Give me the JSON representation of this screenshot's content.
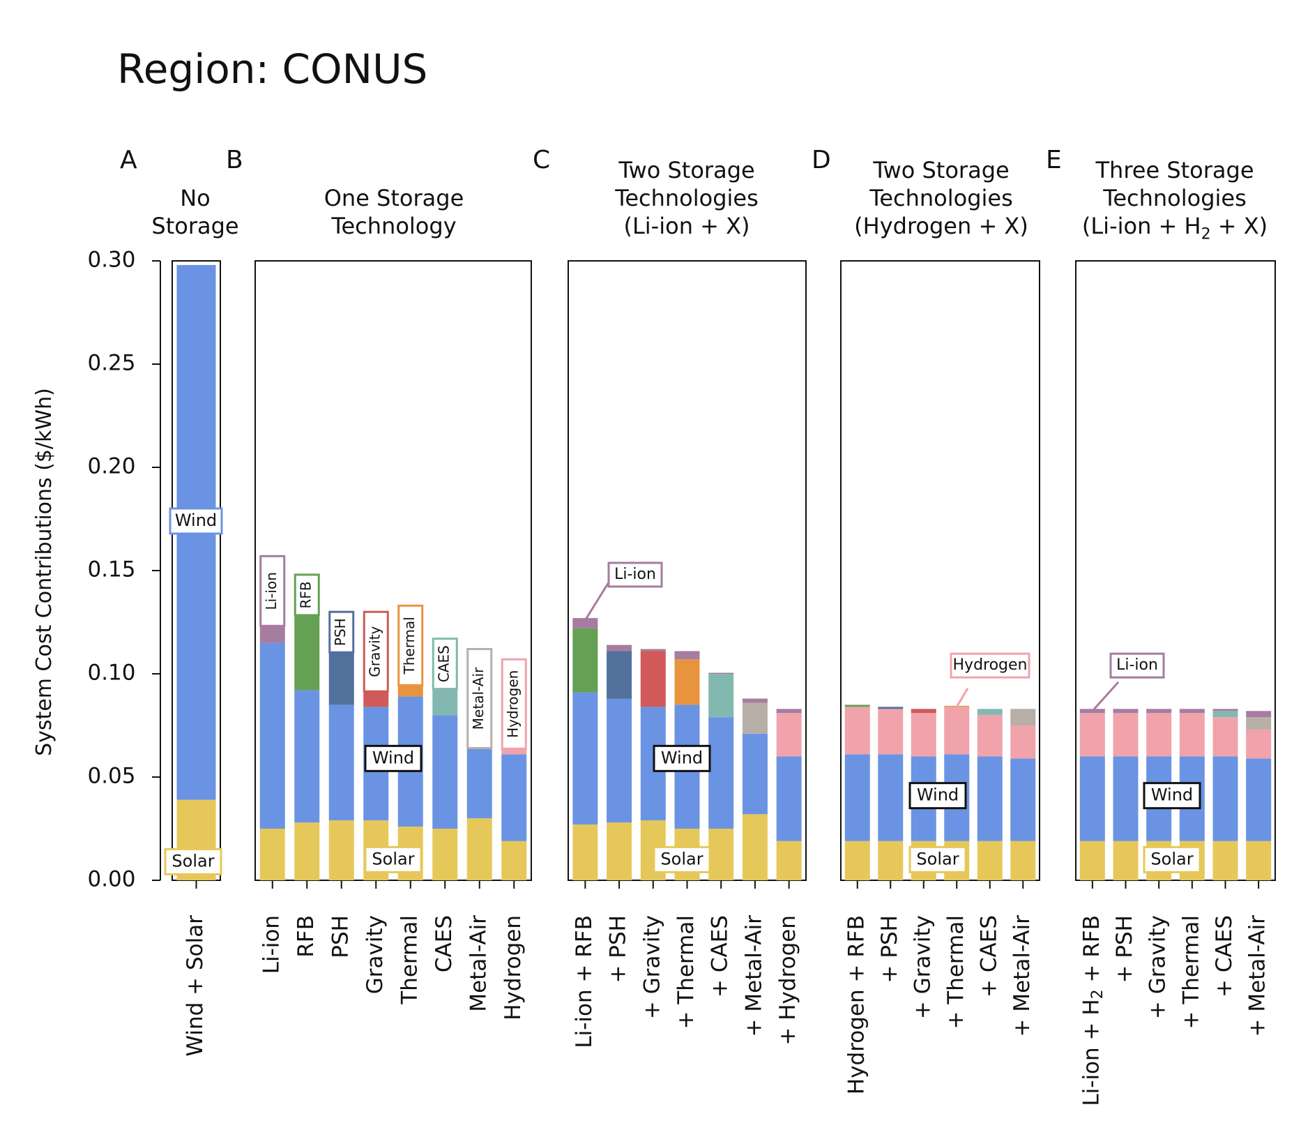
{
  "region_title": "Region: CONUS",
  "ylabel": "System Cost Contributions ($/kWh)",
  "colors": {
    "Solar": "#e6c85a",
    "Wind": "#6b93e3",
    "Li-ion": "#a67c9f",
    "RFB": "#66a055",
    "PSH": "#52709c",
    "Gravity": "#d0595a",
    "Thermal": "#e8943e",
    "CAES": "#83b8b0",
    "Metal-Air": "#b8aea8",
    "Hydrogen": "#f0a3ab"
  },
  "chart_data": [
    {
      "panel": "A",
      "title": [
        "No",
        "Storage"
      ],
      "type": "bar",
      "stacked": true,
      "ylim": [
        0,
        0.3
      ],
      "yticks": [
        "0.00",
        "0.05",
        "0.10",
        "0.15",
        "0.20",
        "0.25",
        "0.30"
      ],
      "categories": [
        "Wind + Solar"
      ],
      "series": [
        {
          "name": "Solar",
          "values": [
            0.039
          ]
        },
        {
          "name": "Wind",
          "values": [
            0.259
          ]
        }
      ],
      "annotations": [
        "Wind",
        "Solar"
      ]
    },
    {
      "panel": "B",
      "title": [
        "One Storage",
        "Technology"
      ],
      "type": "bar",
      "stacked": true,
      "ylim": [
        0,
        0.3
      ],
      "categories": [
        "Li-ion",
        "RFB",
        "PSH",
        "Gravity",
        "Thermal",
        "CAES",
        "Metal-Air",
        "Hydrogen"
      ],
      "series": [
        {
          "name": "Solar",
          "values": [
            0.025,
            0.028,
            0.029,
            0.029,
            0.026,
            0.025,
            0.03,
            0.019
          ]
        },
        {
          "name": "Wind",
          "values": [
            0.09,
            0.064,
            0.056,
            0.055,
            0.063,
            0.055,
            0.04,
            0.042
          ]
        },
        {
          "name": "Li-ion",
          "values": [
            0.017,
            0,
            0,
            0,
            0,
            0,
            0,
            0
          ]
        },
        {
          "name": "RFB",
          "values": [
            0,
            0.038,
            0,
            0,
            0,
            0,
            0,
            0
          ]
        },
        {
          "name": "PSH",
          "values": [
            0,
            0,
            0.031,
            0,
            0,
            0,
            0,
            0
          ]
        },
        {
          "name": "Gravity",
          "values": [
            0,
            0,
            0,
            0.029,
            0,
            0,
            0,
            0
          ]
        },
        {
          "name": "Thermal",
          "values": [
            0,
            0,
            0,
            0,
            0.025,
            0,
            0,
            0
          ]
        },
        {
          "name": "CAES",
          "values": [
            0,
            0,
            0,
            0,
            0,
            0.02,
            0,
            0
          ]
        },
        {
          "name": "Metal-Air",
          "values": [
            0,
            0,
            0,
            0,
            0,
            0,
            0.019,
            0
          ]
        },
        {
          "name": "Hydrogen",
          "values": [
            0,
            0,
            0,
            0,
            0,
            0,
            0,
            0.023
          ]
        }
      ],
      "annotations": [
        "Li-ion",
        "RFB",
        "PSH",
        "Gravity",
        "Thermal",
        "CAES",
        "Metal-Air",
        "Hydrogen",
        "Wind",
        "Solar"
      ]
    },
    {
      "panel": "C",
      "title": [
        "Two Storage",
        "Technologies",
        "(Li-ion + X)"
      ],
      "type": "bar",
      "stacked": true,
      "ylim": [
        0,
        0.3
      ],
      "categories": [
        "Li-ion + RFB",
        "+ PSH",
        "+ Gravity",
        "+ Thermal",
        "+ CAES",
        "+ Metal-Air",
        "+ Hydrogen"
      ],
      "series": [
        {
          "name": "Solar",
          "values": [
            0.027,
            0.028,
            0.029,
            0.025,
            0.025,
            0.032,
            0.019
          ]
        },
        {
          "name": "Wind",
          "values": [
            0.064,
            0.06,
            0.055,
            0.06,
            0.054,
            0.039,
            0.041
          ]
        },
        {
          "name": "RFB",
          "values": [
            0.031,
            0,
            0,
            0,
            0,
            0,
            0
          ]
        },
        {
          "name": "PSH",
          "values": [
            0,
            0.023,
            0,
            0,
            0,
            0,
            0
          ]
        },
        {
          "name": "Gravity",
          "values": [
            0,
            0,
            0.027,
            0,
            0,
            0,
            0
          ]
        },
        {
          "name": "Thermal",
          "values": [
            0,
            0,
            0,
            0.022,
            0,
            0,
            0
          ]
        },
        {
          "name": "CAES",
          "values": [
            0,
            0,
            0,
            0,
            0.021,
            0,
            0
          ]
        },
        {
          "name": "Metal-Air",
          "values": [
            0,
            0,
            0,
            0,
            0,
            0.015,
            0
          ]
        },
        {
          "name": "Hydrogen",
          "values": [
            0,
            0,
            0,
            0,
            0,
            0,
            0.021
          ]
        },
        {
          "name": "Li-ion",
          "values": [
            0.005,
            0.003,
            0.001,
            0.004,
            0.0005,
            0.002,
            0.002
          ]
        }
      ],
      "annotations": [
        "Li-ion",
        "Wind",
        "Solar"
      ]
    },
    {
      "panel": "D",
      "title": [
        "Two Storage",
        "Technologies",
        "(Hydrogen + X)"
      ],
      "type": "bar",
      "stacked": true,
      "ylim": [
        0,
        0.3
      ],
      "categories": [
        "Hydrogen + RFB",
        "+ PSH",
        "+ Gravity",
        "+ Thermal",
        "+ CAES",
        "+ Metal-Air"
      ],
      "series": [
        {
          "name": "Solar",
          "values": [
            0.019,
            0.019,
            0.019,
            0.019,
            0.019,
            0.019
          ]
        },
        {
          "name": "Wind",
          "values": [
            0.042,
            0.042,
            0.041,
            0.042,
            0.041,
            0.04
          ]
        },
        {
          "name": "Hydrogen",
          "values": [
            0.023,
            0.022,
            0.021,
            0.023,
            0.02,
            0.016
          ]
        },
        {
          "name": "RFB",
          "values": [
            0.001,
            0,
            0,
            0,
            0,
            0
          ]
        },
        {
          "name": "PSH",
          "values": [
            0,
            0.001,
            0,
            0,
            0,
            0
          ]
        },
        {
          "name": "Gravity",
          "values": [
            0,
            0,
            0.002,
            0,
            0,
            0
          ]
        },
        {
          "name": "Thermal",
          "values": [
            0,
            0,
            0,
            0.0005,
            0,
            0
          ]
        },
        {
          "name": "CAES",
          "values": [
            0,
            0,
            0,
            0,
            0.003,
            0
          ]
        },
        {
          "name": "Metal-Air",
          "values": [
            0,
            0,
            0,
            0,
            0,
            0.008
          ]
        }
      ],
      "annotations": [
        "Hydrogen",
        "Wind",
        "Solar"
      ]
    },
    {
      "panel": "E",
      "title": [
        "Three Storage",
        "Technologies",
        "(Li-ion + H",
        "2",
        " + X)"
      ],
      "type": "bar",
      "stacked": true,
      "ylim": [
        0,
        0.3
      ],
      "categories": [
        "Li-ion + H2 + RFB",
        "+ PSH",
        "+ Gravity",
        "+ Thermal",
        "+ CAES",
        "+ Metal-Air"
      ],
      "series": [
        {
          "name": "Solar",
          "values": [
            0.019,
            0.019,
            0.019,
            0.019,
            0.019,
            0.019
          ]
        },
        {
          "name": "Wind",
          "values": [
            0.041,
            0.041,
            0.041,
            0.041,
            0.041,
            0.04
          ]
        },
        {
          "name": "Hydrogen",
          "values": [
            0.021,
            0.021,
            0.021,
            0.021,
            0.019,
            0.014
          ]
        },
        {
          "name": "RFB",
          "values": [
            0,
            0,
            0,
            0,
            0,
            0
          ]
        },
        {
          "name": "PSH",
          "values": [
            0,
            0,
            0,
            0,
            0,
            0
          ]
        },
        {
          "name": "Gravity",
          "values": [
            0,
            0,
            0,
            0,
            0,
            0
          ]
        },
        {
          "name": "Thermal",
          "values": [
            0,
            0,
            0,
            0,
            0,
            0
          ]
        },
        {
          "name": "CAES",
          "values": [
            0,
            0,
            0,
            0,
            0.003,
            0
          ]
        },
        {
          "name": "Metal-Air",
          "values": [
            0,
            0,
            0,
            0,
            0,
            0.006
          ]
        },
        {
          "name": "Li-ion",
          "values": [
            0.002,
            0.002,
            0.002,
            0.002,
            0.001,
            0.003
          ]
        }
      ],
      "annotations": [
        "Li-ion",
        "Wind",
        "Solar"
      ]
    }
  ]
}
